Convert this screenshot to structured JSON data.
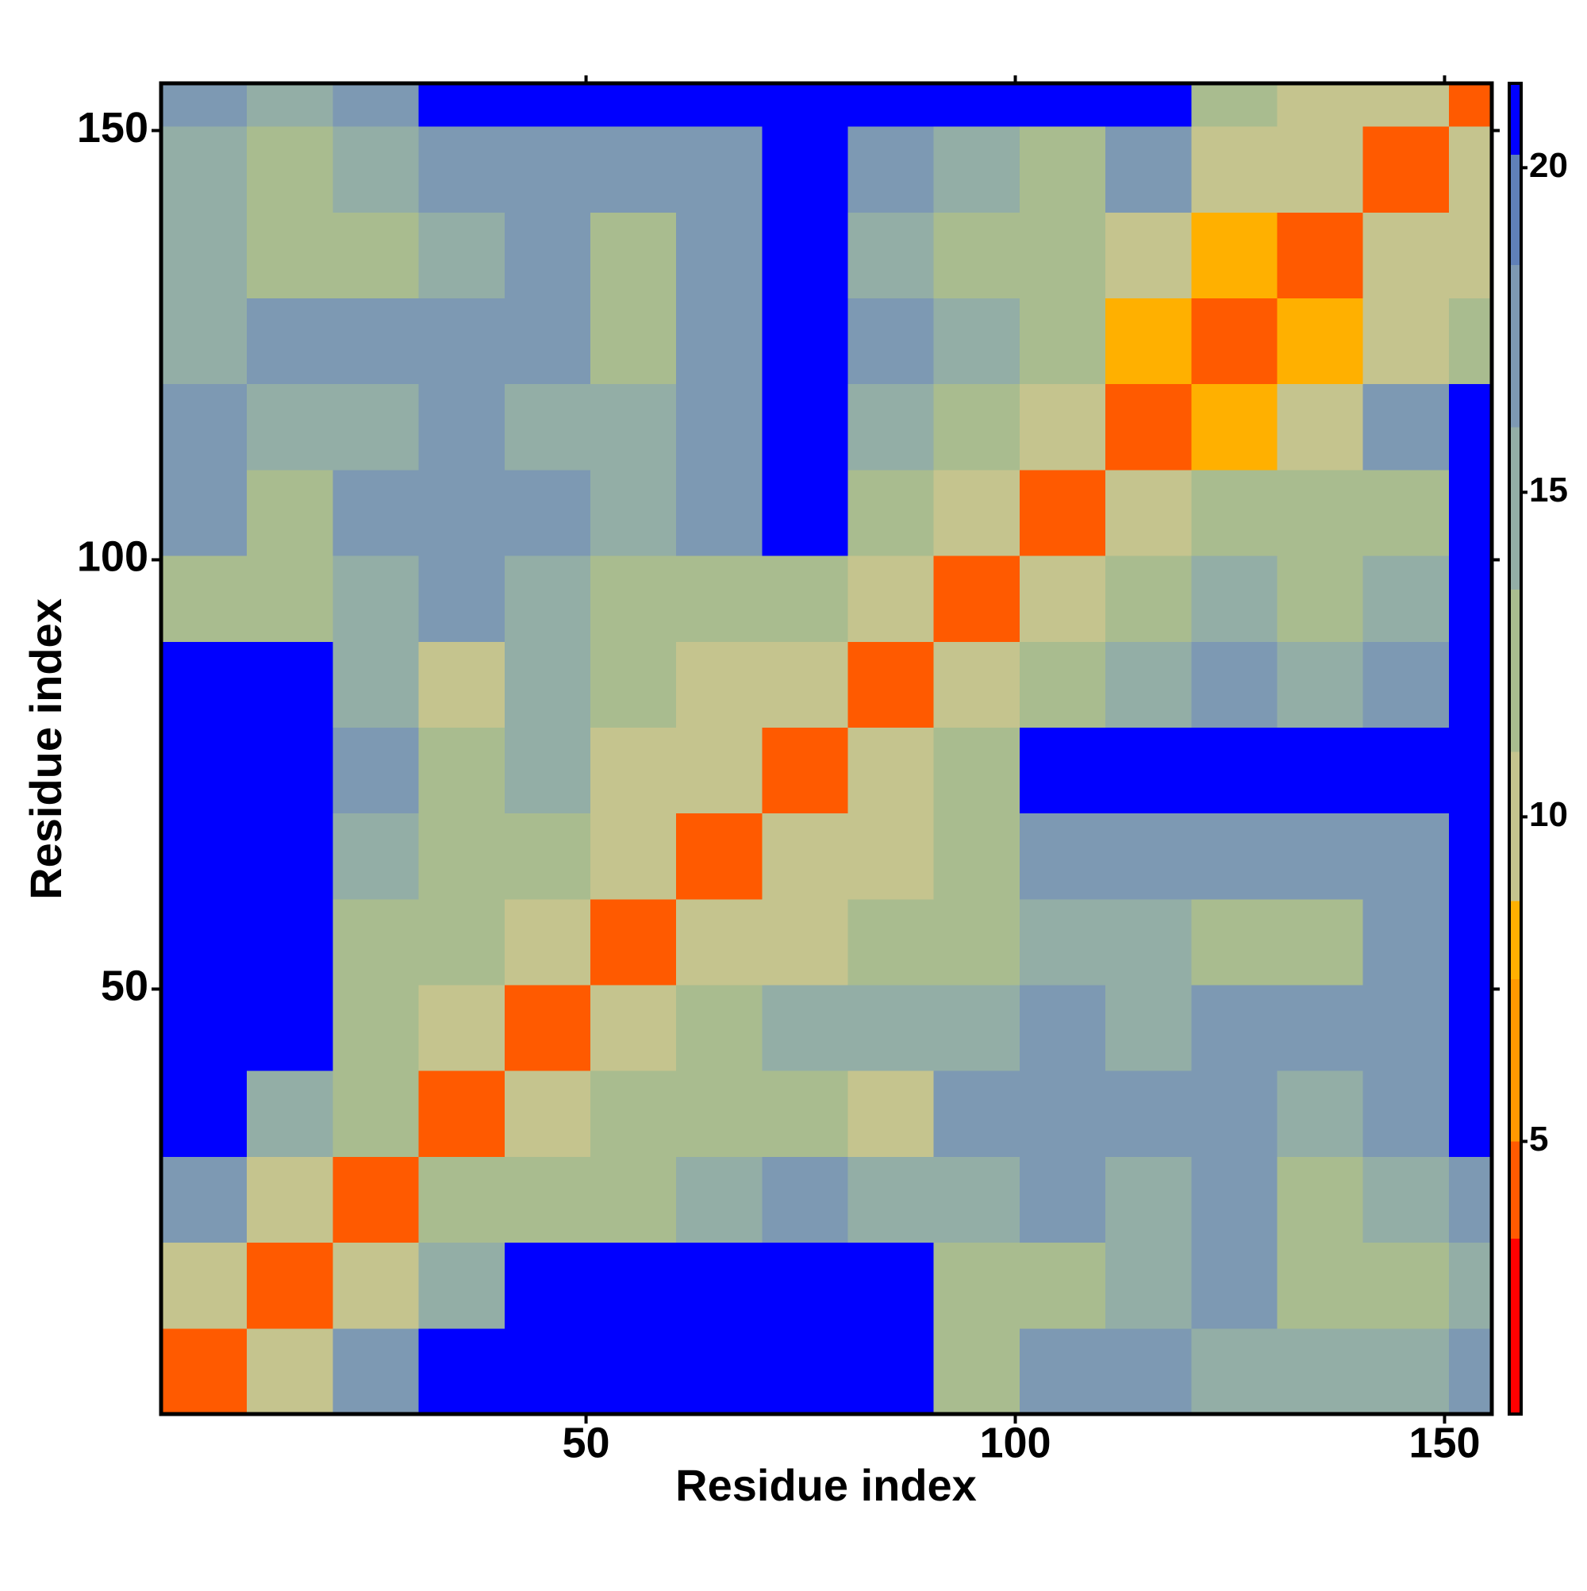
{
  "chart_data": {
    "type": "heatmap",
    "x_label": "Residue index",
    "y_label": "Residue index",
    "xbins": [
      0.5,
      10.5,
      20.5,
      30.5,
      40.5,
      50.5,
      60.5,
      70.5,
      80.5,
      90.5,
      100.5,
      110.5,
      120.5,
      130.5,
      140.5,
      150.5,
      155.5
    ],
    "ybins": [
      0.5,
      10.5,
      20.5,
      30.5,
      40.5,
      50.5,
      60.5,
      70.5,
      80.5,
      90.5,
      100.5,
      110.5,
      120.5,
      130.5,
      140.5,
      150.5,
      155.5
    ],
    "z": [
      [
        4,
        10,
        16,
        21,
        21,
        21,
        21,
        21,
        21,
        13,
        16,
        17,
        15,
        14,
        15,
        16
      ],
      [
        10,
        4,
        10,
        15,
        21,
        21,
        21,
        21,
        21,
        11,
        13,
        14,
        17,
        12,
        13,
        15
      ],
      [
        16,
        10,
        4,
        11,
        12,
        11,
        14,
        16,
        14,
        15,
        18,
        15,
        16,
        13,
        15,
        17
      ],
      [
        21,
        15,
        11,
        4,
        10,
        11,
        12,
        11,
        10,
        16,
        17,
        16,
        16,
        15,
        17,
        21
      ],
      [
        21,
        21,
        12,
        10,
        4,
        9,
        11,
        14,
        14,
        15,
        16,
        14,
        16,
        16,
        18,
        21
      ],
      [
        21,
        21,
        11,
        11,
        9,
        4,
        10,
        9,
        11,
        13,
        14,
        15,
        13,
        12,
        16,
        21
      ],
      [
        21,
        21,
        14,
        12,
        11,
        10,
        4,
        10,
        10,
        12,
        18,
        17,
        16,
        16,
        17,
        21
      ],
      [
        21,
        21,
        16,
        11,
        14,
        9,
        10,
        4,
        9,
        11,
        21,
        21,
        21,
        21,
        21,
        21
      ],
      [
        21,
        21,
        14,
        10,
        14,
        11,
        10,
        9,
        4,
        10,
        13,
        15,
        16,
        14,
        17,
        21
      ],
      [
        13,
        11,
        15,
        16,
        15,
        13,
        12,
        11,
        10,
        4,
        9,
        11,
        14,
        13,
        15,
        21
      ],
      [
        16,
        13,
        18,
        17,
        16,
        14,
        18,
        21,
        13,
        9,
        4,
        9,
        11,
        11,
        13,
        21
      ],
      [
        17,
        14,
        15,
        16,
        14,
        15,
        17,
        21,
        15,
        11,
        9,
        4,
        8,
        10,
        16,
        21
      ],
      [
        15,
        17,
        16,
        16,
        16,
        13,
        16,
        21,
        16,
        14,
        11,
        8,
        4,
        8,
        10,
        13
      ],
      [
        14,
        12,
        13,
        15,
        16,
        12,
        16,
        21,
        14,
        13,
        11,
        10,
        8,
        4,
        10,
        10
      ],
      [
        15,
        13,
        15,
        17,
        18,
        16,
        17,
        21,
        17,
        15,
        13,
        16,
        10,
        10,
        4,
        9
      ],
      [
        16,
        15,
        17,
        21,
        21,
        21,
        21,
        21,
        21,
        21,
        21,
        21,
        13,
        10,
        9,
        4
      ]
    ],
    "xlim": [
      0.5,
      155.5
    ],
    "ylim": [
      0.5,
      155.5
    ],
    "xticks": [
      50,
      100,
      150
    ],
    "yticks": [
      50,
      100,
      150
    ],
    "zlim": [
      0.8,
      21.3
    ],
    "zticks": [
      5,
      10,
      15,
      20
    ],
    "colorscale": [
      [
        0.8,
        "#ff0000"
      ],
      [
        3.5,
        "#ff5a00"
      ],
      [
        5,
        "#ff9900"
      ],
      [
        7.5,
        "#ffb000"
      ],
      [
        8.7,
        "#c5c48e"
      ],
      [
        11,
        "#a9bc8f"
      ],
      [
        13.5,
        "#93aea6"
      ],
      [
        16,
        "#7d99b3"
      ],
      [
        18.5,
        "#5f80b8"
      ],
      [
        20.2,
        "#0000ff"
      ]
    ]
  }
}
